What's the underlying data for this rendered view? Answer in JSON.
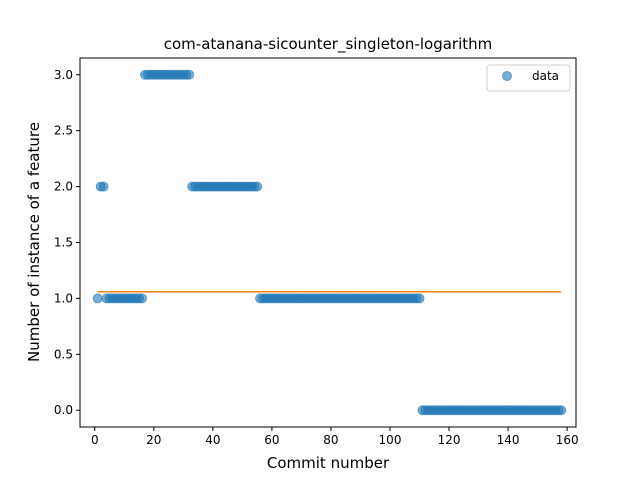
{
  "chart_data": {
    "type": "scatter",
    "title": "com-atanana-sicounter_singleton-logarithm",
    "xlabel": "Commit number",
    "ylabel": "Number of instance of a feature",
    "xlim": [
      -5,
      163
    ],
    "ylim": [
      -0.15,
      3.15
    ],
    "xticks": [
      0,
      20,
      40,
      60,
      80,
      100,
      120,
      140,
      160
    ],
    "yticks": [
      0.0,
      0.5,
      1.0,
      1.5,
      2.0,
      2.5,
      3.0
    ],
    "ytick_labels": [
      "0.0",
      "0.5",
      "1.0",
      "1.5",
      "2.0",
      "2.5",
      "3.0"
    ],
    "legend": {
      "position": "top-right",
      "entries": [
        "data"
      ]
    },
    "grid": false,
    "colors": {
      "points": "#1f77b4",
      "fit_line": "#ff7f0e"
    },
    "series": [
      {
        "name": "data",
        "kind": "points",
        "segments": [
          {
            "x_start": 1,
            "x_end": 1,
            "y": 1
          },
          {
            "x_start": 2,
            "x_end": 3,
            "y": 2
          },
          {
            "x_start": 4,
            "x_end": 16,
            "y": 1
          },
          {
            "x_start": 17,
            "x_end": 32,
            "y": 3
          },
          {
            "x_start": 33,
            "x_end": 55,
            "y": 2
          },
          {
            "x_start": 56,
            "x_end": 110,
            "y": 1
          },
          {
            "x_start": 111,
            "x_end": 158,
            "y": 0
          }
        ]
      },
      {
        "kind": "line",
        "x": [
          1,
          158
        ],
        "y": [
          1.06,
          1.06
        ]
      }
    ]
  }
}
